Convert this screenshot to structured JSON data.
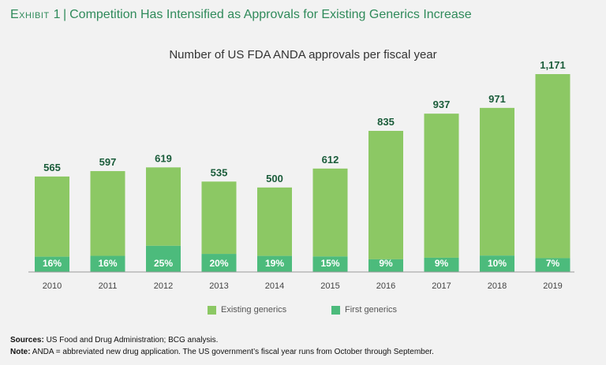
{
  "header": {
    "exhibit_label": "Exhibit 1",
    "separator": "|",
    "title": "Competition Has Intensified as Approvals for Existing Generics Increase"
  },
  "chart_data": {
    "type": "bar",
    "title": "Number of US FDA ANDA approvals per fiscal year",
    "categories": [
      "2010",
      "2011",
      "2012",
      "2013",
      "2014",
      "2015",
      "2016",
      "2017",
      "2018",
      "2019"
    ],
    "totals": [
      565,
      597,
      619,
      535,
      500,
      612,
      835,
      937,
      971,
      1171
    ],
    "total_labels": [
      "565",
      "597",
      "619",
      "535",
      "500",
      "612",
      "835",
      "937",
      "971",
      "1,171"
    ],
    "series": [
      {
        "name": "First generics",
        "share_percent": [
          16,
          16,
          25,
          20,
          19,
          15,
          9,
          9,
          10,
          7
        ],
        "labels": [
          "16%",
          "16%",
          "25%",
          "20%",
          "19%",
          "15%",
          "9%",
          "9%",
          "10%",
          "7%"
        ],
        "color": "#4cbb7c"
      },
      {
        "name": "Existing generics",
        "color": "#8cc864"
      }
    ],
    "ylim": [
      0,
      1171
    ],
    "legend": "bottom-center"
  },
  "footer": {
    "sources_label": "Sources:",
    "sources_text": " US Food and Drug Administration; BCG analysis.",
    "note_label": "Note:",
    "note_text": " ANDA = abbreviated new drug application. The US government’s fiscal year runs from October through September."
  },
  "colors": {
    "existing": "#8cc864",
    "first": "#4cbb7c",
    "accent": "#2f8a5a",
    "label": "#1a5c3a"
  }
}
